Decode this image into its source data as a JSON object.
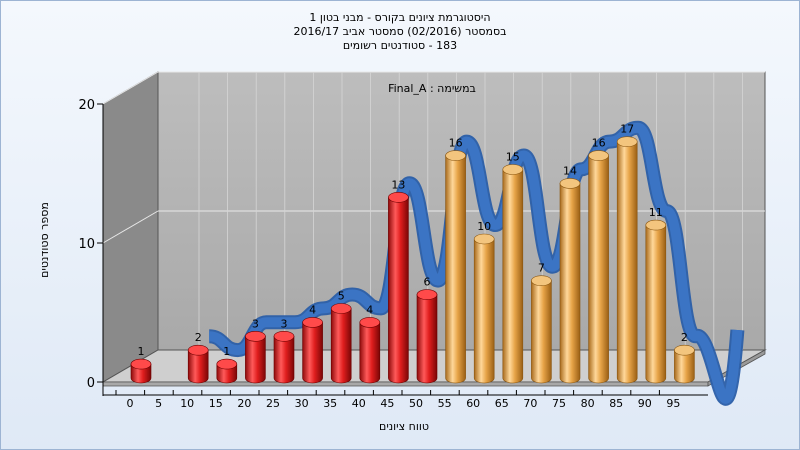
{
  "chart_data": {
    "type": "bar",
    "title_lines": [
      "היסטוגרמת ציונים בקורס - מבני בטון 1",
      "בסמסטר  (02/2016)  סמסטר אביב 2016/17",
      "183 - סטודנטים רשומים"
    ],
    "annotation": "במשימה : Final_A",
    "xlabel": "טווח ציונים",
    "ylabel": "מספר סטודנטים",
    "x_ticks": [
      "0",
      "5",
      "10",
      "15",
      "20",
      "25",
      "30",
      "35",
      "40",
      "45",
      "50",
      "55",
      "60",
      "65",
      "70",
      "75",
      "80",
      "85",
      "90",
      "95"
    ],
    "y_ticks": [
      0,
      10,
      20
    ],
    "ylim": [
      0,
      20
    ],
    "bin_starts": [
      0,
      10,
      15,
      20,
      25,
      30,
      35,
      40,
      45,
      50,
      55,
      60,
      65,
      70,
      75,
      80,
      85,
      90,
      95
    ],
    "values": [
      1,
      2,
      1,
      3,
      3,
      4,
      5,
      4,
      13,
      6,
      16,
      10,
      15,
      7,
      14,
      16,
      17,
      11,
      2
    ],
    "colors": {
      "fail": "#d81e1e",
      "pass": "#e0a24a",
      "curve": "#3b74c4",
      "wall_back": "#b3b3b3",
      "wall_side": "#8e8e8e",
      "floor": "#c9c9c9"
    },
    "pass_threshold": 55,
    "grid": true
  }
}
